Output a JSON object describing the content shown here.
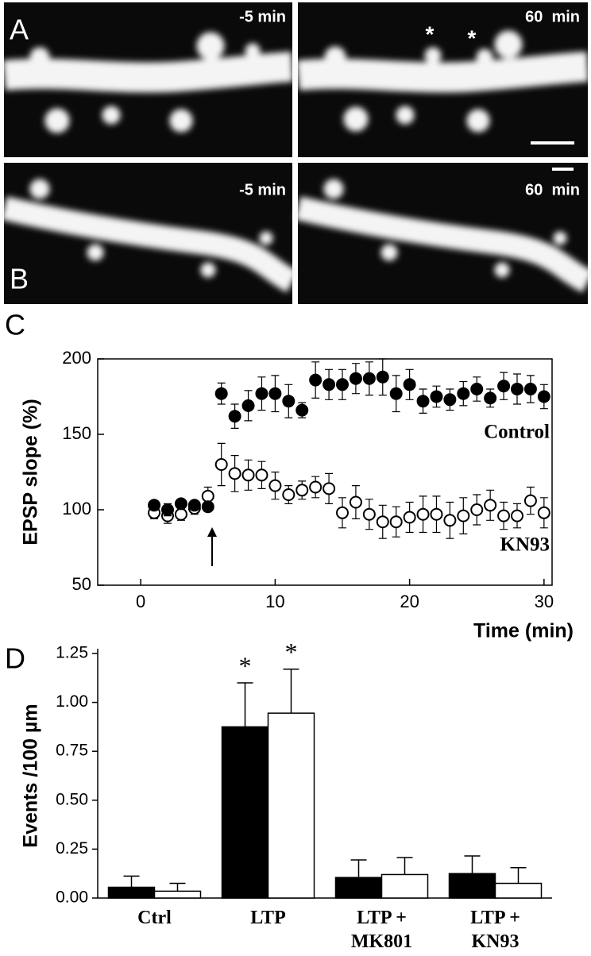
{
  "panels": {
    "A": {
      "label": "A",
      "left": "-5 min",
      "right": "60  min",
      "asterisks": [
        "*",
        "*"
      ]
    },
    "B": {
      "label": "B",
      "left": "-5 min",
      "right": "60  min"
    }
  },
  "chart_data": [
    {
      "type": "scatter",
      "panel_label": "C",
      "x_label": "Time (min)",
      "y_label": "EPSP slope (%)",
      "xlim": [
        -3.2,
        30.6
      ],
      "xticks": [
        0,
        10,
        20,
        30
      ],
      "ylim": [
        50,
        200
      ],
      "yticks": [
        50,
        100,
        150,
        200
      ],
      "annotations": [
        "Control",
        "KN93"
      ],
      "series": [
        {
          "name": "Control",
          "color": "#000000",
          "filled": true,
          "x": [
            1,
            2,
            3,
            4,
            5,
            6,
            7,
            8,
            9,
            10,
            11,
            12,
            13,
            14,
            15,
            16,
            17,
            18,
            19,
            20,
            21,
            22,
            23,
            24,
            25,
            26,
            27,
            28,
            29,
            30
          ],
          "values": [
            103,
            100,
            104,
            103,
            102,
            177,
            162,
            169,
            177,
            177,
            172,
            166,
            186,
            183,
            183,
            187,
            187,
            188,
            177,
            183,
            172,
            175,
            173,
            177,
            180,
            174,
            182,
            180,
            180,
            175
          ],
          "errors": [
            3,
            4,
            3,
            3,
            3,
            7,
            8,
            10,
            11,
            12,
            11,
            5,
            12,
            10,
            10,
            10,
            11,
            12,
            12,
            10,
            8,
            7,
            7,
            8,
            8,
            6,
            9,
            10,
            9,
            8
          ]
        },
        {
          "name": "KN93",
          "color": "#000000",
          "filled": false,
          "x": [
            1,
            2,
            3,
            4,
            5,
            6,
            7,
            8,
            9,
            10,
            11,
            12,
            13,
            14,
            15,
            16,
            17,
            18,
            19,
            20,
            21,
            22,
            23,
            24,
            25,
            26,
            27,
            28,
            29,
            30
          ],
          "values": [
            98,
            96,
            97,
            101,
            109,
            130,
            124,
            123,
            123,
            116,
            110,
            113,
            115,
            114,
            98,
            105,
            97,
            92,
            92,
            95,
            97,
            97,
            93,
            96,
            100,
            103,
            96,
            96,
            106,
            98
          ],
          "errors": [
            4,
            5,
            4,
            4,
            6,
            14,
            12,
            10,
            9,
            9,
            6,
            6,
            7,
            10,
            10,
            11,
            10,
            11,
            10,
            10,
            12,
            12,
            12,
            12,
            10,
            10,
            9,
            8,
            9,
            10
          ]
        }
      ]
    },
    {
      "type": "bar",
      "panel_label": "D",
      "y_label": "Events /100 µm",
      "categories": [
        "Ctrl",
        "LTP",
        "LTP +\nMK801",
        "LTP +\nKN93"
      ],
      "ylim": [
        0,
        1.25
      ],
      "yticks": [
        {
          "value": 0,
          "label": "0.00"
        },
        {
          "value": 0.25,
          "label": "0.25"
        },
        {
          "value": 0.5,
          "label": "0.50"
        },
        {
          "value": 0.75,
          "label": "0.75"
        },
        {
          "value": 1,
          "label": "1.00"
        },
        {
          "value": 1.25,
          "label": "1.25"
        }
      ],
      "annotations": [
        "*",
        "*"
      ],
      "series": [
        {
          "color": "#000000",
          "values": [
            0.055,
            0.875,
            0.105,
            0.125
          ],
          "errors": [
            0.057,
            0.225,
            0.09,
            0.09
          ]
        },
        {
          "color": "#ffffff",
          "values": [
            0.035,
            0.945,
            0.12,
            0.075
          ],
          "errors": [
            0.04,
            0.225,
            0.087,
            0.08
          ]
        }
      ]
    }
  ]
}
